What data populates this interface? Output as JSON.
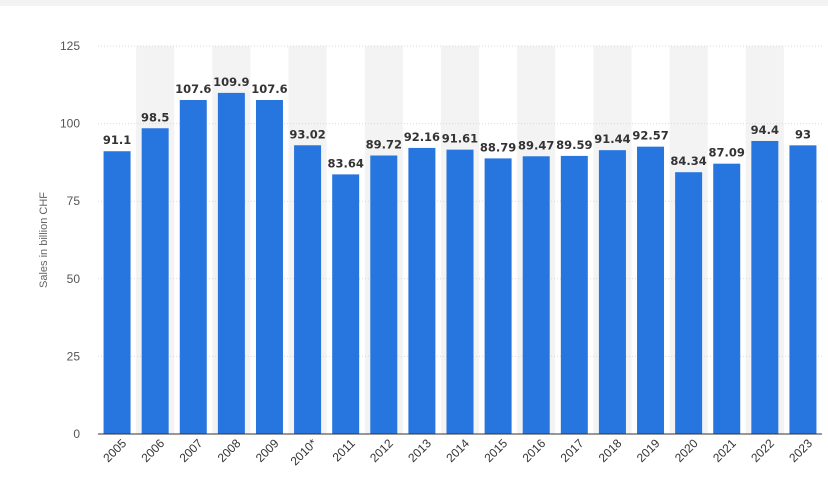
{
  "chart_data": {
    "type": "bar",
    "categories": [
      "2005",
      "2006",
      "2007",
      "2008",
      "2009",
      "2010*",
      "2011",
      "2012",
      "2013",
      "2014",
      "2015",
      "2016",
      "2017",
      "2018",
      "2019",
      "2020",
      "2021",
      "2022",
      "2023"
    ],
    "values": [
      91.1,
      98.5,
      107.6,
      109.9,
      107.6,
      93.02,
      83.64,
      89.72,
      92.16,
      91.61,
      88.79,
      89.47,
      89.59,
      91.44,
      92.57,
      84.34,
      87.09,
      94.4,
      93
    ],
    "value_labels": [
      "91.1",
      "98.5",
      "107.6",
      "109.9",
      "107.6",
      "93.02",
      "83.64",
      "89.72",
      "92.16",
      "91.61",
      "88.79",
      "89.47",
      "89.59",
      "91.44",
      "92.57",
      "84.34",
      "87.09",
      "94.4",
      "93"
    ],
    "title": "",
    "xlabel": "",
    "ylabel": "Sales in billion CHF",
    "ylim": [
      0,
      125
    ],
    "yticks": [
      "0",
      "25",
      "50",
      "75",
      "100",
      "125"
    ],
    "grid": true,
    "colors": {
      "bar": "#2775de",
      "alt_band": "#f3f3f3",
      "grid": "#d9d9d9",
      "axis": "#333333"
    }
  }
}
